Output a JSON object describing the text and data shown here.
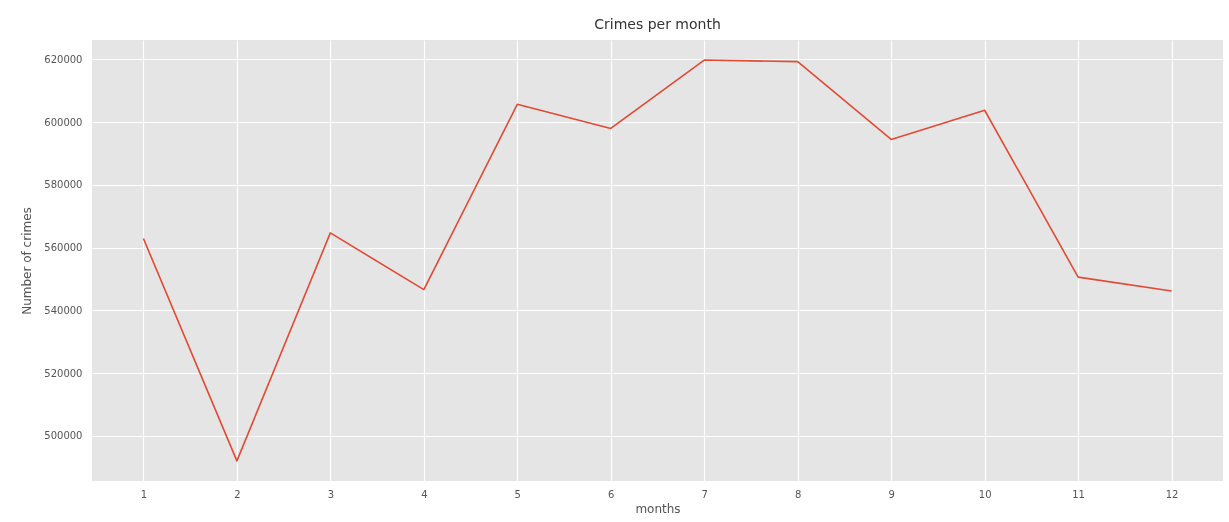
{
  "chart_data": {
    "type": "line",
    "title": "Crimes per month",
    "xlabel": "months",
    "ylabel": "Number of crimes",
    "x": [
      1,
      2,
      3,
      4,
      5,
      6,
      7,
      8,
      9,
      10,
      11,
      12
    ],
    "series": [
      {
        "color": "#e24a33",
        "values": [
          562900,
          492000,
          564700,
          546600,
          605700,
          598000,
          619800,
          619300,
          594500,
          603800,
          550600,
          546200
        ]
      }
    ],
    "xlim": [
      0.45,
      12.55
    ],
    "xticks": [
      1,
      2,
      3,
      4,
      5,
      6,
      7,
      8,
      9,
      10,
      11,
      12
    ],
    "ylim": [
      485600,
      626200
    ],
    "yticks": [
      500000,
      520000,
      540000,
      560000,
      580000,
      600000,
      620000
    ],
    "grid": true,
    "marker": "none",
    "line_style": "solid"
  }
}
